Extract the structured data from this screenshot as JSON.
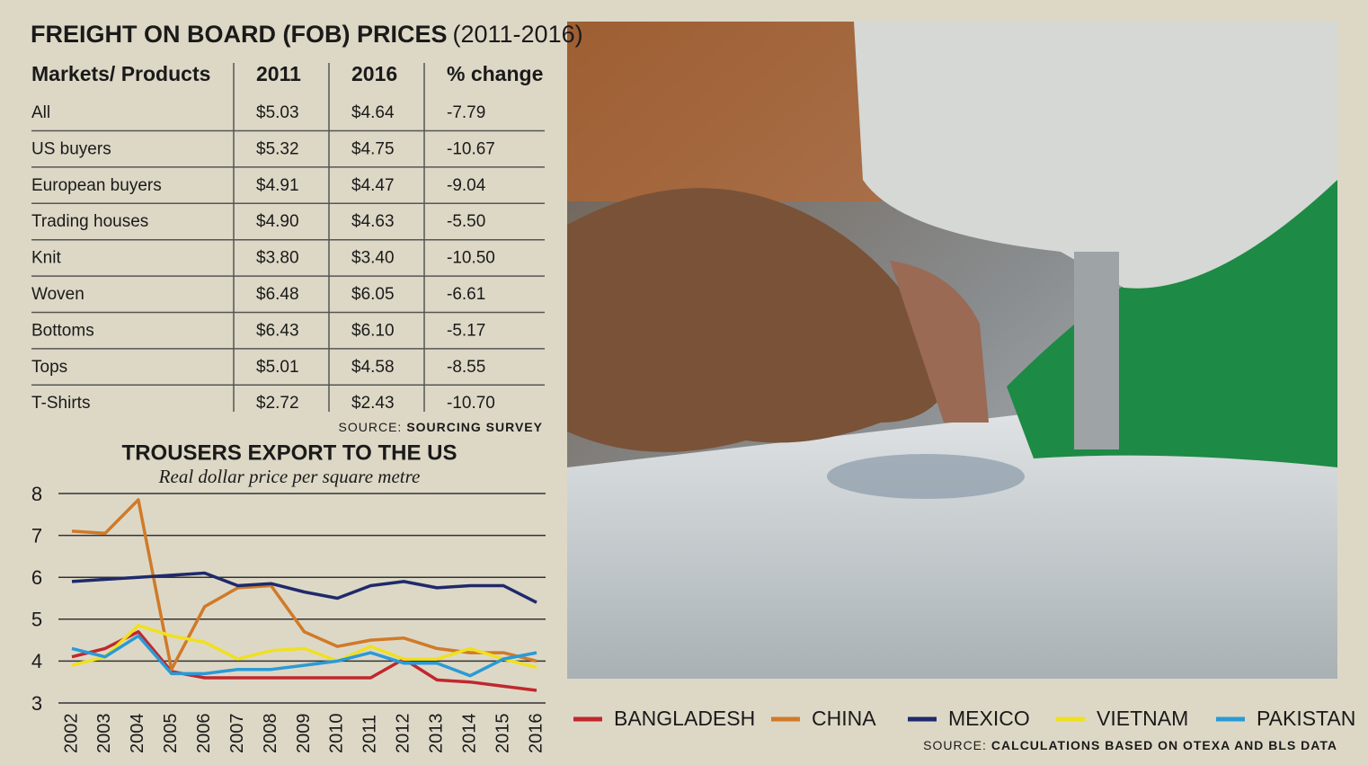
{
  "table": {
    "title": "FREIGHT ON BOARD (FOB) PRICES",
    "title_years": "(2011-2016)",
    "header": [
      "Markets/ Products",
      "2011",
      "2016",
      "% change"
    ],
    "rows": [
      [
        "All",
        "$5.03",
        "$4.64",
        "-7.79"
      ],
      [
        "US buyers",
        "$5.32",
        "$4.75",
        "-10.67"
      ],
      [
        "European buyers",
        "$4.91",
        "$4.47",
        "-9.04"
      ],
      [
        "Trading houses",
        "$4.90",
        "$4.63",
        "-5.50"
      ],
      [
        "Knit",
        "$3.80",
        "$3.40",
        "-10.50"
      ],
      [
        "Woven",
        "$6.48",
        "$6.05",
        "-6.61"
      ],
      [
        "Bottoms",
        "$6.43",
        "$6.10",
        "-5.17"
      ],
      [
        "Tops",
        "$5.01",
        "$4.58",
        "-8.55"
      ],
      [
        "T-Shirts",
        "$2.72",
        "$2.43",
        "-10.70"
      ]
    ],
    "source_label": "SOURCE:",
    "source": "SOURCING SURVEY"
  },
  "chart_data": {
    "type": "line",
    "title": "TROUSERS EXPORT TO THE US",
    "subtitle": "Real dollar price per square metre",
    "x": [
      2002,
      2003,
      2004,
      2005,
      2006,
      2007,
      2008,
      2009,
      2010,
      2011,
      2012,
      2013,
      2014,
      2015,
      2016
    ],
    "xlim": [
      2002,
      2016
    ],
    "ylim": [
      3,
      8
    ],
    "yticks": [
      3,
      4,
      5,
      6,
      7,
      8
    ],
    "grid": true,
    "legend": "bottom",
    "series": [
      {
        "name": "BANGLADESH",
        "color": "#c0282d",
        "values": [
          4.1,
          4.3,
          4.7,
          3.75,
          3.6,
          3.6,
          3.6,
          3.6,
          3.6,
          3.6,
          4.05,
          3.55,
          3.5,
          3.4,
          3.3
        ]
      },
      {
        "name": "CHINA",
        "color": "#d07a28",
        "values": [
          7.1,
          7.05,
          7.85,
          3.8,
          5.3,
          5.75,
          5.8,
          4.7,
          4.35,
          4.5,
          4.55,
          4.3,
          4.2,
          4.2,
          4.0
        ]
      },
      {
        "name": "MEXICO",
        "color": "#1f2a6b",
        "values": [
          5.9,
          5.95,
          6.0,
          6.05,
          6.1,
          5.8,
          5.85,
          5.65,
          5.5,
          5.8,
          5.9,
          5.75,
          5.8,
          5.8,
          5.4
        ]
      },
      {
        "name": "VIETNAM",
        "color": "#f0e020",
        "values": [
          3.9,
          4.1,
          4.85,
          4.6,
          4.45,
          4.05,
          4.25,
          4.3,
          4.0,
          4.35,
          4.05,
          4.05,
          4.3,
          4.05,
          3.85
        ]
      },
      {
        "name": "PAKISTAN",
        "color": "#2a9ad6",
        "values": [
          4.3,
          4.1,
          4.6,
          3.7,
          3.7,
          3.8,
          3.8,
          3.9,
          4.0,
          4.2,
          3.95,
          3.95,
          3.65,
          4.05,
          4.2
        ]
      }
    ],
    "source_label": "SOURCE:",
    "source": "CALCULATIONS BASED ON OTEXA AND BLS DATA"
  }
}
